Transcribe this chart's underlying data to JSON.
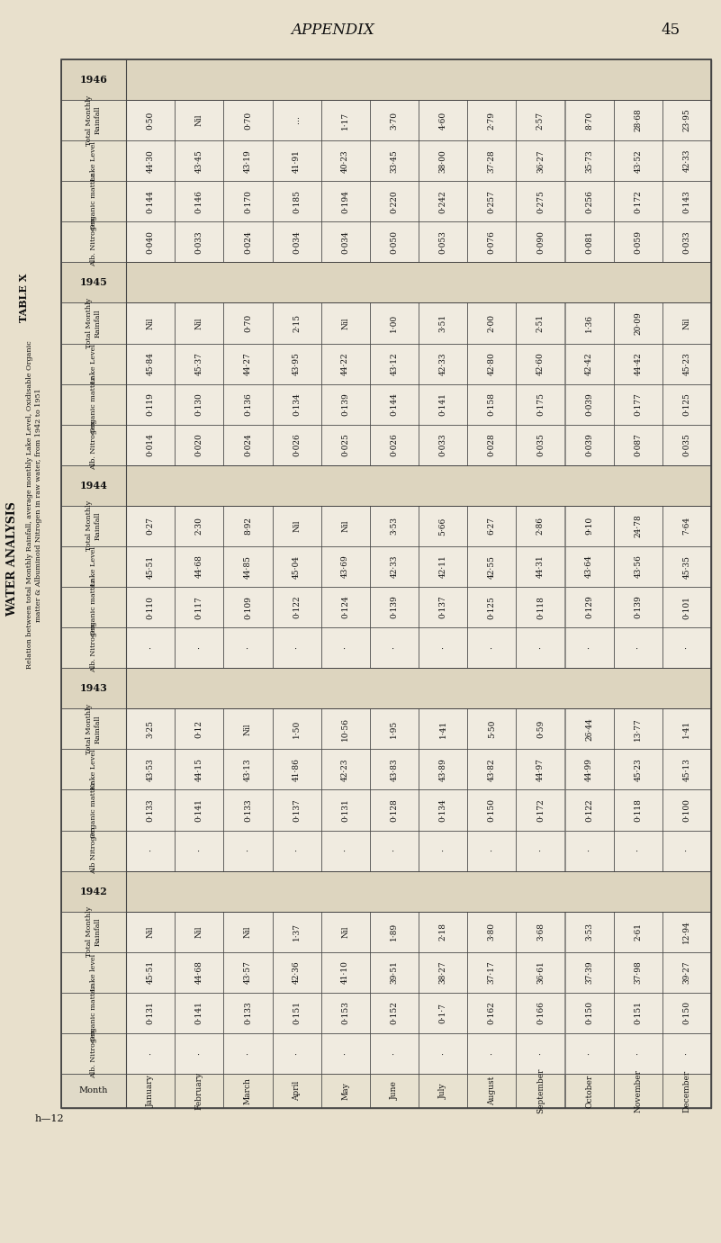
{
  "title": "APPENDIX",
  "page_number": "45",
  "table_label": "TABLE X",
  "subtitle_line1": "Relation between total Monthly Rainfall, average monthly Lake Level, Oxidisable Organic",
  "subtitle_line2": "matter & Albuminoid Nitrogen in raw water, from 1942 to 1951",
  "water_analysis": "WATER ANALYSIS",
  "h12": "h—12",
  "months": [
    "January",
    "February",
    "March",
    "April",
    "May",
    "June",
    "July",
    "August",
    "September",
    "October",
    "November",
    "December"
  ],
  "years_data": [
    {
      "year": "1942",
      "rows": [
        {
          "label": "Total Monthly\nRainfall",
          "values": [
            "Nil",
            "Nil",
            "Nil",
            "1·37",
            "Nil",
            "1·89",
            "2·18",
            "3·80",
            "3·68",
            "3·53",
            "2·61",
            "12·94"
          ]
        },
        {
          "label": "Lake level",
          "values": [
            "45·51",
            "44·68",
            "43·57",
            "42·36",
            "41·10",
            "39·51",
            "38·27",
            "37·17",
            "36·61",
            "37·39",
            "37·98",
            "39·27"
          ]
        },
        {
          "label": "Organic matter",
          "values": [
            "0·131",
            "0·141",
            "0·133",
            "0·151",
            "0·153",
            "0·152",
            "0·1·7",
            "0·162",
            "0·166",
            "0·150",
            "0·151",
            "0·150"
          ]
        },
        {
          "label": "Alb. Nitrogen",
          "values": [
            "·",
            "·",
            "·",
            "·",
            "·",
            "·",
            "·",
            "·",
            "·",
            "·",
            "·",
            "·"
          ]
        }
      ]
    },
    {
      "year": "1943",
      "rows": [
        {
          "label": "Total Monthly\nRainfall",
          "values": [
            "3·25",
            "0·12",
            "Nil",
            "1·50",
            "10·56",
            "1·95",
            "1·41",
            "5·50",
            "0·59",
            "26·44",
            "13·77",
            "1·41"
          ]
        },
        {
          "label": "Kake Level",
          "values": [
            "43·53",
            "44·15",
            "43·13",
            "41·86",
            "42·23",
            "43·83",
            "43·89",
            "43·82",
            "44·97",
            "44·99",
            "45·23",
            "45·13"
          ]
        },
        {
          "label": "Organic matter",
          "values": [
            "0·133",
            "0·141",
            "0·133",
            "0·137",
            "0·131",
            "0·128",
            "0·134",
            "0·150",
            "0·172",
            "0·122",
            "0·118",
            "0·100"
          ]
        },
        {
          "label": "Alb Nitrogen",
          "values": [
            "·",
            "·",
            "·",
            "·",
            "·",
            "·",
            "·",
            "·",
            "·",
            "·",
            "·",
            "·"
          ]
        }
      ]
    },
    {
      "year": "1944",
      "rows": [
        {
          "label": "Total Monthly\nRainfall",
          "values": [
            "0·27",
            "2·30",
            "8·92",
            "Nil",
            "Nil",
            "3·53",
            "5·66",
            "6·27",
            "2·86",
            "9·10",
            "24·78",
            "7·64"
          ]
        },
        {
          "label": "Lake Level",
          "values": [
            "45·51",
            "44·68",
            "44·85",
            "45·04",
            "43·69",
            "42·33",
            "42·11",
            "42·55",
            "44·31",
            "43·64",
            "43·56",
            "45·35"
          ]
        },
        {
          "label": "Organic matter",
          "values": [
            "0·110",
            "0·117",
            "0·109",
            "0·122",
            "0·124",
            "0·139",
            "0·137",
            "0·125",
            "0·118",
            "0·129",
            "0·139",
            "0·101"
          ]
        },
        {
          "label": "Alb. Nitrogen",
          "values": [
            "·",
            "·",
            "·",
            "·",
            "·",
            "·",
            "·",
            "·",
            "·",
            "·",
            "·",
            "·"
          ]
        }
      ]
    },
    {
      "year": "1945",
      "rows": [
        {
          "label": "Total Monthly\nRainfall",
          "values": [
            "Nil",
            "Nil",
            "0·70",
            "2·15",
            "Nil",
            "1·00",
            "3·51",
            "2·00",
            "2·51",
            "1·36",
            "20·09",
            "Nil"
          ]
        },
        {
          "label": "Lake Level",
          "values": [
            "45·84",
            "45·37",
            "44·27",
            "43·95",
            "44·22",
            "43·12",
            "42·33",
            "42·80",
            "42·60",
            "42·42",
            "44·42",
            "45·23"
          ]
        },
        {
          "label": "Organic matter",
          "values": [
            "0·119",
            "0·130",
            "0·136",
            "0·134",
            "0·139",
            "0·144",
            "0·141",
            "0·158",
            "0·175",
            "0·039",
            "0·177",
            "0·125"
          ]
        },
        {
          "label": "Alb. Nitrogen",
          "values": [
            "0·014",
            "0·020",
            "0·024",
            "0·026",
            "0·025",
            "0·026",
            "0·033",
            "0·028",
            "0·035",
            "0·039",
            "0·087",
            "0·035"
          ]
        }
      ]
    },
    {
      "year": "1946",
      "rows": [
        {
          "label": "Total Monthly\nRainfall",
          "values": [
            "0·50",
            "Nil",
            "0·70",
            "…",
            "1·17",
            "3·70",
            "4·60",
            "2·79",
            "2·57",
            "8·70",
            "28·68",
            "23·95"
          ]
        },
        {
          "label": "Lake Level",
          "values": [
            "44·30",
            "43·45",
            "43·19",
            "41·91",
            "40·23",
            "33·45",
            "38·00",
            "37·28",
            "36·27",
            "35·73",
            "43·52",
            "42·33"
          ]
        },
        {
          "label": "Organic matter",
          "values": [
            "0·144",
            "0·146",
            "0·170",
            "0·185",
            "0·194",
            "0·220",
            "0·242",
            "0·257",
            "0·275",
            "0·256",
            "0·172",
            "0·143"
          ]
        },
        {
          "label": "Alb. Nitrogen",
          "values": [
            "0·040",
            "0·033",
            "0·024",
            "0·034",
            "0·034",
            "0·050",
            "0·053",
            "0·076",
            "0·090",
            "0·081",
            "0·059",
            "0·033"
          ]
        }
      ]
    }
  ],
  "bg_color": "#d6cdb8",
  "page_bg": "#e8e0cc",
  "table_bg": "#f0ebe0",
  "line_color": "#444444",
  "text_color": "#111111"
}
